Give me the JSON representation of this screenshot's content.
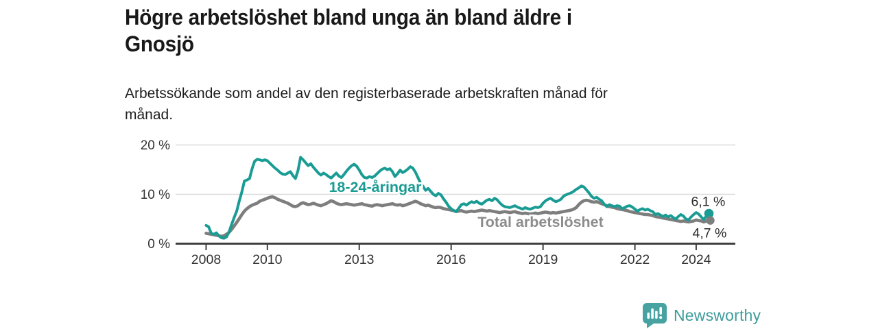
{
  "header": {
    "title_line1": "Högre arbetslöshet bland unga än bland äldre i",
    "title_line2": "Gnosjö",
    "subtitle_line1": "Arbetssökande som andel av den registerbaserade arbetskraften månad för",
    "subtitle_line2": "månad."
  },
  "footer": {
    "brand": "Newsworthy",
    "logo_icon": "newsworthy-bar-chart-speech-bubble-icon"
  },
  "colors": {
    "young_line": "#1a9c94",
    "total_line": "#7e7e7e",
    "total_label": "#8c8c8c",
    "axis": "#3f3f3f",
    "grid": "#d9d9d9",
    "tick_text": "#333333",
    "value_text": "#2b2b2b",
    "logo": "#47a3a2"
  },
  "chart_data": {
    "type": "line",
    "title": "Högre arbetslöshet bland unga än bland äldre i Gnosjö",
    "subtitle": "Arbetssökande som andel av den registerbaserade arbetskraften månad för månad.",
    "unit": "%",
    "frequency": "monthly",
    "x_start_year": 2008,
    "x_end_label": "mitten av 2024",
    "ylim": [
      0,
      21
    ],
    "grid": true,
    "legend_position": "inline-labels",
    "y_axis": {
      "ticks": [
        {
          "v": 0,
          "label": "0 %"
        },
        {
          "v": 10,
          "label": "10 %"
        },
        {
          "v": 20,
          "label": "20 %"
        }
      ]
    },
    "x_axis": {
      "ticks": [
        {
          "v": 2008,
          "label": "2008"
        },
        {
          "v": 2010,
          "label": "2010"
        },
        {
          "v": 2013,
          "label": "2013"
        },
        {
          "v": 2016,
          "label": "2016"
        },
        {
          "v": 2019,
          "label": "2019"
        },
        {
          "v": 2022,
          "label": "2022"
        },
        {
          "v": 2024,
          "label": "2024"
        }
      ]
    },
    "series": [
      {
        "name": "18-24-åringar",
        "color_key": "young_line",
        "end_value_label": "6,1 %",
        "end_value": 6.1,
        "values": [
          3.7,
          3.4,
          2.1,
          1.9,
          2.2,
          1.6,
          1.2,
          1.1,
          1.4,
          2.4,
          3.9,
          5.3,
          6.6,
          8.7,
          10.5,
          12.7,
          12.9,
          13.2,
          15.2,
          16.7,
          17.1,
          17.0,
          16.8,
          17.0,
          16.8,
          16.3,
          15.8,
          15.3,
          14.9,
          14.4,
          14.1,
          14.0,
          14.3,
          14.6,
          13.8,
          13.2,
          14.8,
          17.5,
          17.0,
          16.4,
          15.8,
          16.2,
          15.5,
          14.9,
          14.3,
          13.9,
          14.3,
          14.0,
          13.6,
          13.3,
          13.8,
          14.3,
          13.7,
          13.4,
          14.0,
          14.7,
          15.3,
          15.8,
          16.1,
          15.7,
          14.9,
          14.0,
          13.4,
          13.3,
          13.6,
          13.4,
          13.7,
          14.2,
          14.7,
          15.1,
          15.3,
          15.0,
          15.2,
          14.6,
          13.6,
          14.2,
          14.9,
          14.4,
          14.7,
          15.1,
          15.6,
          15.3,
          14.5,
          13.4,
          12.3,
          11.6,
          10.8,
          11.2,
          10.6,
          10.0,
          9.7,
          10.2,
          9.9,
          9.1,
          8.4,
          7.6,
          7.1,
          6.7,
          6.5,
          7.2,
          7.9,
          8.1,
          7.8,
          8.2,
          8.5,
          8.3,
          8.6,
          8.2,
          8.0,
          8.4,
          8.8,
          9.0,
          8.7,
          9.2,
          8.9,
          8.3,
          7.8,
          7.5,
          7.4,
          7.3,
          7.5,
          7.7,
          7.4,
          7.2,
          7.0,
          7.3,
          7.1,
          7.0,
          7.2,
          7.4,
          7.3,
          7.5,
          8.2,
          8.7,
          9.0,
          9.2,
          8.8,
          8.5,
          8.7,
          9.0,
          9.6,
          9.9,
          10.1,
          10.3,
          10.6,
          11.0,
          11.3,
          11.7,
          11.5,
          10.9,
          10.3,
          9.6,
          9.2,
          9.4,
          9.0,
          8.7,
          8.0,
          7.5,
          7.9,
          7.7,
          7.5,
          7.7,
          7.6,
          7.1,
          7.3,
          7.6,
          7.7,
          7.4,
          7.0,
          6.6,
          6.9,
          7.1,
          6.8,
          7.0,
          6.7,
          6.5,
          5.9,
          6.1,
          5.8,
          5.5,
          5.8,
          5.4,
          5.7,
          5.3,
          5.0,
          5.5,
          5.9,
          5.6,
          5.0,
          4.8,
          5.4,
          5.9,
          6.3,
          6.0,
          5.4,
          4.9,
          5.6,
          6.1
        ]
      },
      {
        "name": "Total arbetslöshet",
        "color_key": "total_line",
        "end_value_label": "4,7 %",
        "end_value": 4.7,
        "values": [
          2.1,
          2.0,
          1.9,
          1.8,
          1.7,
          1.6,
          1.5,
          1.6,
          1.9,
          2.3,
          2.9,
          3.6,
          4.3,
          5.1,
          5.9,
          6.6,
          7.1,
          7.5,
          7.8,
          8.0,
          8.2,
          8.6,
          8.8,
          9.0,
          9.2,
          9.4,
          9.5,
          9.3,
          9.0,
          8.8,
          8.6,
          8.4,
          8.2,
          7.9,
          7.6,
          7.5,
          7.7,
          8.1,
          8.3,
          8.1,
          7.9,
          8.0,
          8.2,
          8.0,
          7.8,
          7.7,
          7.9,
          8.1,
          8.4,
          8.7,
          8.5,
          8.2,
          8.0,
          7.9,
          8.0,
          8.1,
          8.0,
          7.9,
          7.8,
          7.9,
          8.0,
          8.1,
          7.9,
          7.8,
          7.7,
          7.6,
          7.8,
          7.9,
          7.8,
          7.7,
          7.8,
          7.9,
          8.0,
          8.1,
          7.9,
          7.8,
          7.9,
          7.7,
          7.8,
          8.0,
          8.2,
          8.4,
          8.6,
          8.4,
          8.1,
          7.9,
          7.7,
          7.8,
          7.6,
          7.4,
          7.3,
          7.4,
          7.3,
          7.1,
          7.0,
          6.9,
          6.8,
          6.7,
          6.5,
          6.6,
          6.7,
          6.5,
          6.4,
          6.5,
          6.6,
          6.5,
          6.6,
          6.7,
          6.8,
          6.7,
          6.6,
          6.7,
          6.6,
          6.5,
          6.4,
          6.3,
          6.4,
          6.5,
          6.4,
          6.3,
          6.4,
          6.5,
          6.3,
          6.2,
          6.1,
          6.2,
          6.1,
          6.0,
          6.1,
          6.2,
          6.1,
          6.2,
          6.3,
          6.4,
          6.3,
          6.2,
          6.3,
          6.2,
          6.3,
          6.4,
          6.5,
          6.6,
          6.7,
          6.8,
          7.0,
          7.3,
          7.9,
          8.4,
          8.7,
          8.8,
          8.7,
          8.5,
          8.4,
          8.5,
          8.3,
          8.1,
          7.9,
          7.7,
          7.5,
          7.4,
          7.3,
          7.1,
          7.0,
          6.9,
          6.8,
          6.7,
          6.5,
          6.4,
          6.3,
          6.2,
          6.1,
          6.0,
          5.9,
          5.9,
          5.8,
          5.7,
          5.5,
          5.4,
          5.3,
          5.2,
          5.1,
          5.0,
          4.9,
          4.8,
          4.7,
          4.6,
          4.5,
          4.6,
          4.5,
          4.4,
          4.5,
          4.6,
          4.8,
          4.7,
          4.6,
          4.4,
          4.6,
          4.7
        ]
      }
    ]
  }
}
